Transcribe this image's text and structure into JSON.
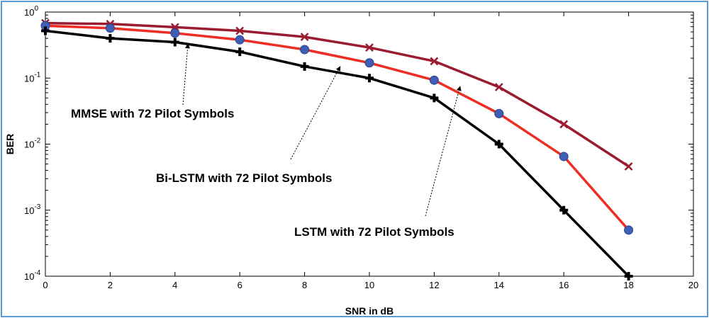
{
  "chart_data": {
    "type": "line",
    "xlabel": "SNR in dB",
    "ylabel": "BER",
    "xlim": [
      0,
      20
    ],
    "ylim": [
      0.0001,
      1
    ],
    "yscale": "log",
    "x_ticks": [
      "0",
      "2",
      "4",
      "6",
      "8",
      "10",
      "12",
      "14",
      "16",
      "18",
      "20"
    ],
    "y_ticks": [
      {
        "base": "10",
        "exp": "0",
        "value": 1
      },
      {
        "base": "10",
        "exp": "-1",
        "value": 0.1
      },
      {
        "base": "10",
        "exp": "-2",
        "value": 0.01
      },
      {
        "base": "10",
        "exp": "-3",
        "value": 0.001
      },
      {
        "base": "10",
        "exp": "-4",
        "value": 0.0001
      }
    ],
    "x": [
      0,
      2,
      4,
      6,
      8,
      10,
      12,
      14,
      16,
      18
    ],
    "series": [
      {
        "color": "#9b1b30",
        "marker": "x",
        "values": [
          0.68,
          0.66,
          0.59,
          0.52,
          0.42,
          0.29,
          0.18,
          0.073,
          0.02,
          0.0046
        ]
      },
      {
        "color": "#ee2d24",
        "marker": "circle",
        "values": [
          0.62,
          0.57,
          0.48,
          0.38,
          0.27,
          0.17,
          0.093,
          0.029,
          0.0065,
          0.0005
        ]
      },
      {
        "color": "#000000",
        "marker": "plus",
        "values": [
          0.52,
          0.4,
          0.35,
          0.25,
          0.15,
          0.1,
          0.05,
          0.01,
          0.001,
          0.0001
        ]
      }
    ],
    "grid": false,
    "annotations": [
      {
        "text": "MMSE with 72 Pilot Symbols",
        "arrow_to": {
          "x": 4.4,
          "y": 0.33
        }
      },
      {
        "text": "Bi-LSTM  with 72 Pilot Symbols",
        "arrow_to": {
          "x": 9.1,
          "y": 0.15
        }
      },
      {
        "text": "LSTM  with 72 Pilot Symbols",
        "arrow_to": {
          "x": 12.8,
          "y": 0.075
        }
      }
    ]
  }
}
